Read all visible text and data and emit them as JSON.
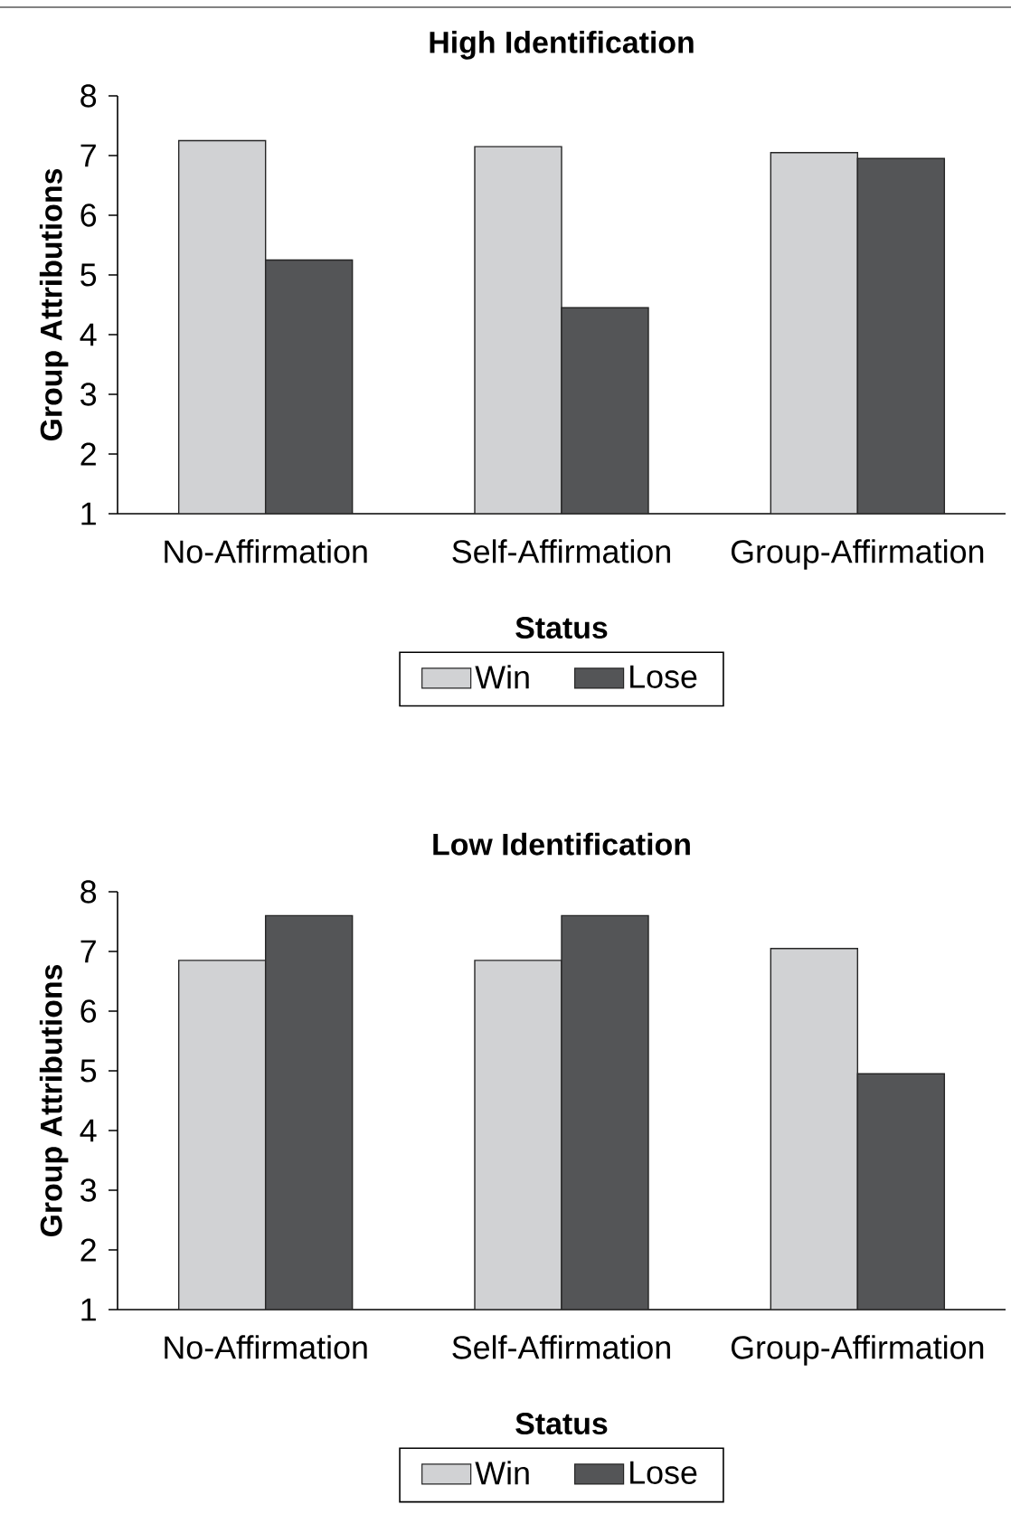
{
  "chart_data": [
    {
      "type": "bar",
      "title": "High Identification",
      "xlabel": "Status",
      "ylabel": "Group Attributions",
      "categories": [
        "No-Affirmation",
        "Self-Affirmation",
        "Group-Affirmation"
      ],
      "series": [
        {
          "name": "Win",
          "color": "#d1d2d4",
          "values": [
            7.25,
            7.15,
            7.05
          ]
        },
        {
          "name": "Lose",
          "color": "#545557",
          "values": [
            5.25,
            4.45,
            6.95
          ]
        }
      ],
      "ylim": [
        1,
        8
      ],
      "yticks": [
        1,
        2,
        3,
        4,
        5,
        6,
        7,
        8
      ],
      "legend": "bottom"
    },
    {
      "type": "bar",
      "title": "Low Identification",
      "xlabel": "Status",
      "ylabel": "Group Attributions",
      "categories": [
        "No-Affirmation",
        "Self-Affirmation",
        "Group-Affirmation"
      ],
      "series": [
        {
          "name": "Win",
          "color": "#d1d2d4",
          "values": [
            6.85,
            6.85,
            7.05
          ]
        },
        {
          "name": "Lose",
          "color": "#545557",
          "values": [
            7.6,
            7.6,
            4.95
          ]
        }
      ],
      "ylim": [
        1,
        8
      ],
      "yticks": [
        1,
        2,
        3,
        4,
        5,
        6,
        7,
        8
      ],
      "legend": "bottom"
    }
  ]
}
